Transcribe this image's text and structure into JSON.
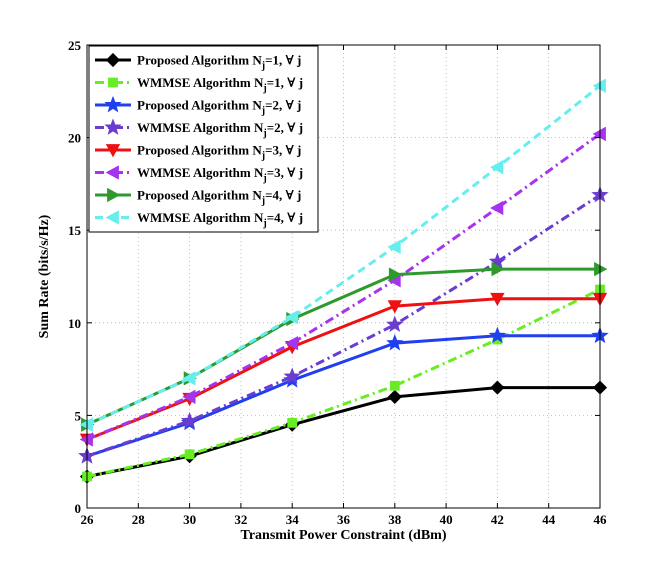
{
  "chart_data": {
    "type": "line",
    "title": "",
    "xlabel": "Transmit Power Constraint (dBm)",
    "ylabel": "Sum Rate (bits/s/Hz)",
    "xlim": [
      26,
      46
    ],
    "ylim": [
      0,
      25
    ],
    "xticks": [
      26,
      28,
      30,
      32,
      34,
      36,
      38,
      40,
      42,
      44,
      46
    ],
    "yticks": [
      0,
      5,
      10,
      15,
      20,
      25
    ],
    "grid": true,
    "legend_position": "top-left",
    "x": [
      26,
      30,
      34,
      38,
      42,
      46
    ],
    "series": [
      {
        "name": "Proposed Algorithm N_j=1, ∀ j",
        "name_main": "Proposed Algorithm N",
        "name_sub": "j",
        "name_tail": "=1, ∀ j",
        "color": "#000000",
        "dash": "solid",
        "marker": "diamond",
        "values": [
          1.7,
          2.8,
          4.5,
          6.0,
          6.5,
          6.5
        ]
      },
      {
        "name": "WMMSE Algorithm N_j=1, ∀ j",
        "name_main": "WMMSE Algorithm N",
        "name_sub": "j",
        "name_tail": "=1, ∀ j",
        "color": "#66ee22",
        "dash": "dashdot",
        "marker": "square",
        "values": [
          1.7,
          2.9,
          4.6,
          6.6,
          9.1,
          11.8
        ]
      },
      {
        "name": "Proposed Algorithm N_j=2, ∀ j",
        "name_main": "Proposed Algorithm N",
        "name_sub": "j",
        "name_tail": "=2, ∀ j",
        "color": "#1f3ff0",
        "dash": "solid",
        "marker": "star",
        "values": [
          2.8,
          4.6,
          6.9,
          8.9,
          9.3,
          9.3
        ]
      },
      {
        "name": "WMMSE Algorithm N_j=2, ∀ j",
        "name_main": "WMMSE Algorithm N",
        "name_sub": "j",
        "name_tail": "=2, ∀ j",
        "color": "#6a3dd0",
        "dash": "dashdot",
        "marker": "star",
        "values": [
          2.8,
          4.7,
          7.1,
          9.9,
          13.3,
          16.9
        ]
      },
      {
        "name": "Proposed Algorithm N_j=3, ∀ j",
        "name_main": "Proposed Algorithm N",
        "name_sub": "j",
        "name_tail": "=3, ∀ j",
        "color": "#ee1111",
        "dash": "solid",
        "marker": "triangle-down",
        "values": [
          3.7,
          5.9,
          8.7,
          10.9,
          11.3,
          11.3
        ]
      },
      {
        "name": "WMMSE Algorithm N_j=3, ∀ j",
        "name_main": "WMMSE Algorithm N",
        "name_sub": "j",
        "name_tail": "=3, ∀ j",
        "color": "#a633ee",
        "dash": "dashdot",
        "marker": "triangle-left",
        "values": [
          3.7,
          6.0,
          8.9,
          12.3,
          16.2,
          20.2
        ]
      },
      {
        "name": "Proposed Algorithm N_j=4, ∀ j",
        "name_main": "Proposed Algorithm N",
        "name_sub": "j",
        "name_tail": "=4, ∀ j",
        "color": "#2e9a2e",
        "dash": "solid",
        "marker": "triangle-right",
        "values": [
          4.5,
          7.0,
          10.2,
          12.6,
          12.9,
          12.9
        ]
      },
      {
        "name": "WMMSE Algorithm N_j=4, ∀ j",
        "name_main": "WMMSE Algorithm N",
        "name_sub": "j",
        "name_tail": "=4, ∀ j",
        "color": "#66eeee",
        "dash": "dashed",
        "marker": "triangle-left",
        "values": [
          4.5,
          7.0,
          10.3,
          14.1,
          18.4,
          22.8
        ]
      }
    ]
  }
}
